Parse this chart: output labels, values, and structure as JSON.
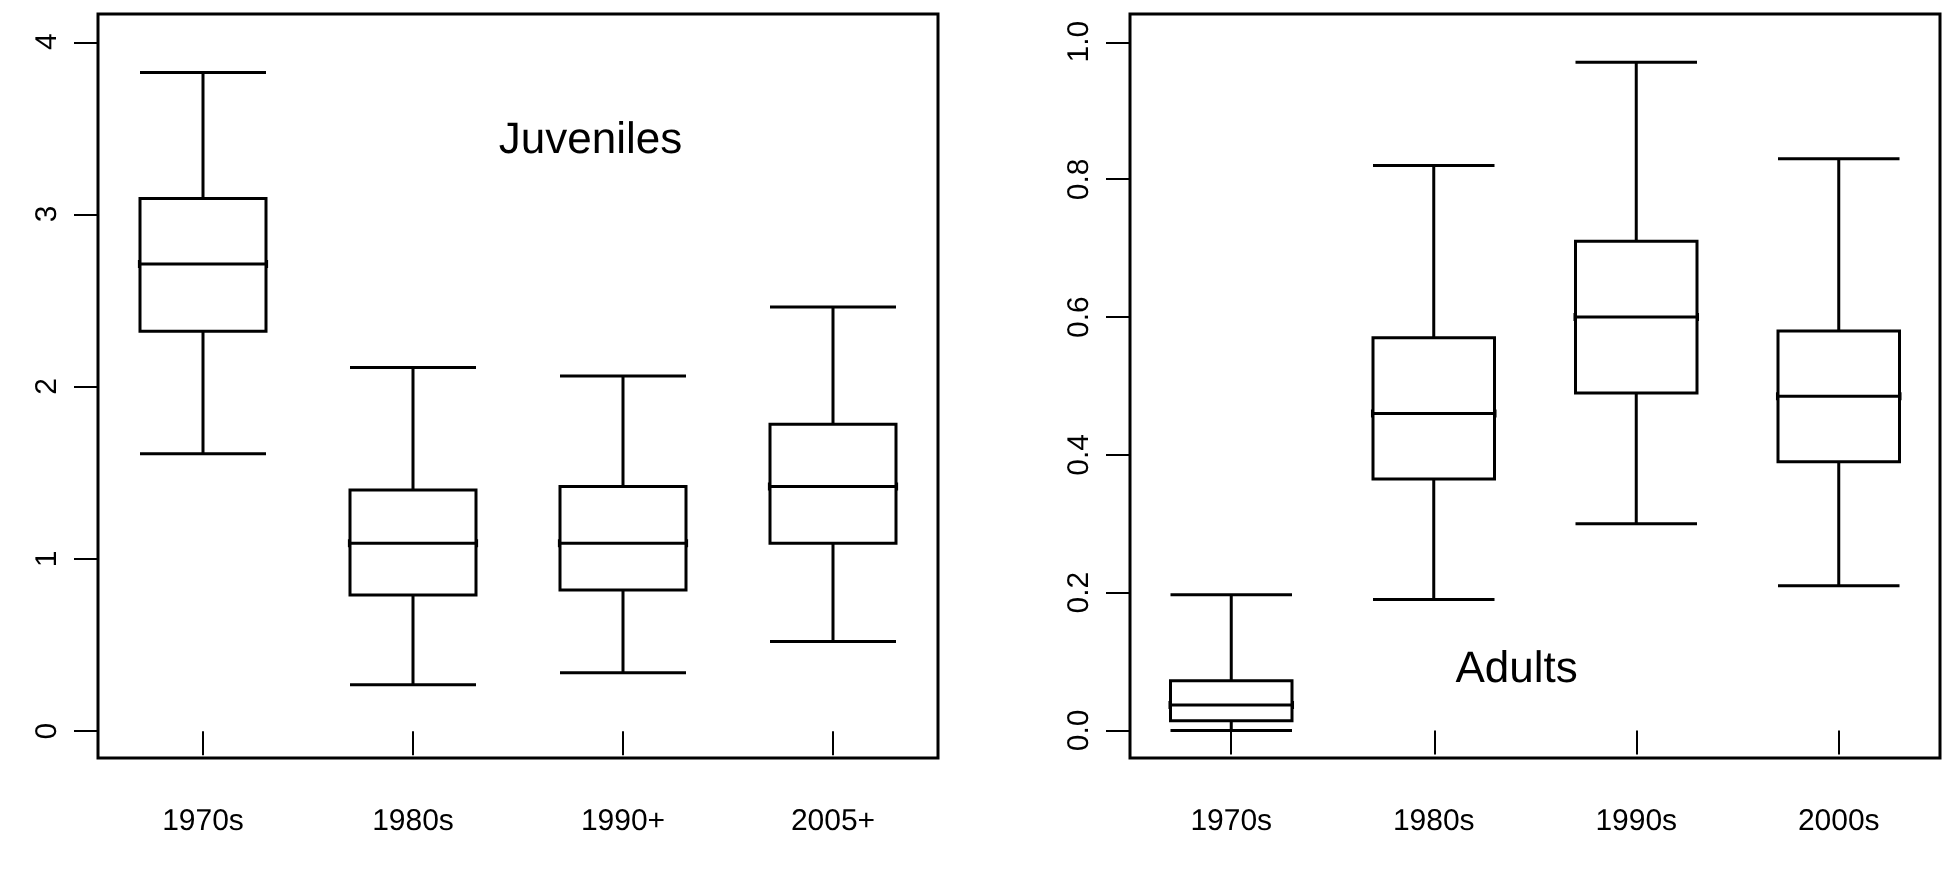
{
  "chart_data": [
    {
      "type": "box",
      "categories": [
        "1970s",
        "1980s",
        "1990+",
        "2005+"
      ],
      "annotations": [
        "Juveniles"
      ],
      "ylim": [
        -0.155,
        4.16
      ],
      "yticks": [
        0,
        1,
        2,
        3,
        4
      ],
      "color": "#000000",
      "boxes": [
        {
          "low": 1.61,
          "q1": 2.32,
          "median": 2.71,
          "q3": 3.09,
          "high": 3.82
        },
        {
          "low": 0.27,
          "q1": 0.79,
          "median": 1.09,
          "q3": 1.4,
          "high": 2.11
        },
        {
          "low": 0.34,
          "q1": 0.82,
          "median": 1.09,
          "q3": 1.42,
          "high": 2.06
        },
        {
          "low": 0.52,
          "q1": 1.09,
          "median": 1.42,
          "q3": 1.78,
          "high": 2.46
        }
      ]
    },
    {
      "type": "box",
      "categories": [
        "1970s",
        "1980s",
        "1990s",
        "2000s"
      ],
      "annotations": [
        "Adults"
      ],
      "ylim": [
        -0.04,
        1.04
      ],
      "yticks": [
        {
          "value": 0,
          "label": "0.0"
        },
        {
          "value": 0.2,
          "label": "0.2"
        },
        {
          "value": 0.4,
          "label": "0.4"
        },
        {
          "value": 0.6,
          "label": "0.6"
        },
        {
          "value": 0.8,
          "label": "0.8"
        },
        {
          "value": 1,
          "label": "1.0"
        }
      ],
      "color": "#000000",
      "boxes": [
        {
          "low": 0,
          "q1": 0.014,
          "median": 0.037,
          "q3": 0.072,
          "high": 0.197
        },
        {
          "low": 0.19,
          "q1": 0.365,
          "median": 0.46,
          "q3": 0.57,
          "high": 0.82
        },
        {
          "low": 0.3,
          "q1": 0.49,
          "median": 0.6,
          "q3": 0.71,
          "high": 0.97
        },
        {
          "low": 0.21,
          "q1": 0.39,
          "median": 0.485,
          "q3": 0.58,
          "high": 0.83
        }
      ]
    }
  ]
}
